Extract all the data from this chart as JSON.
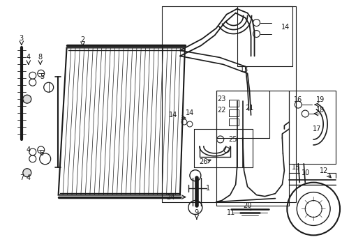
{
  "bg_color": "#ffffff",
  "lc": "#1a1a1a",
  "fig_w": 4.9,
  "fig_h": 3.6,
  "dpi": 100,
  "xlim": [
    0,
    490
  ],
  "ylim": [
    0,
    360
  ]
}
